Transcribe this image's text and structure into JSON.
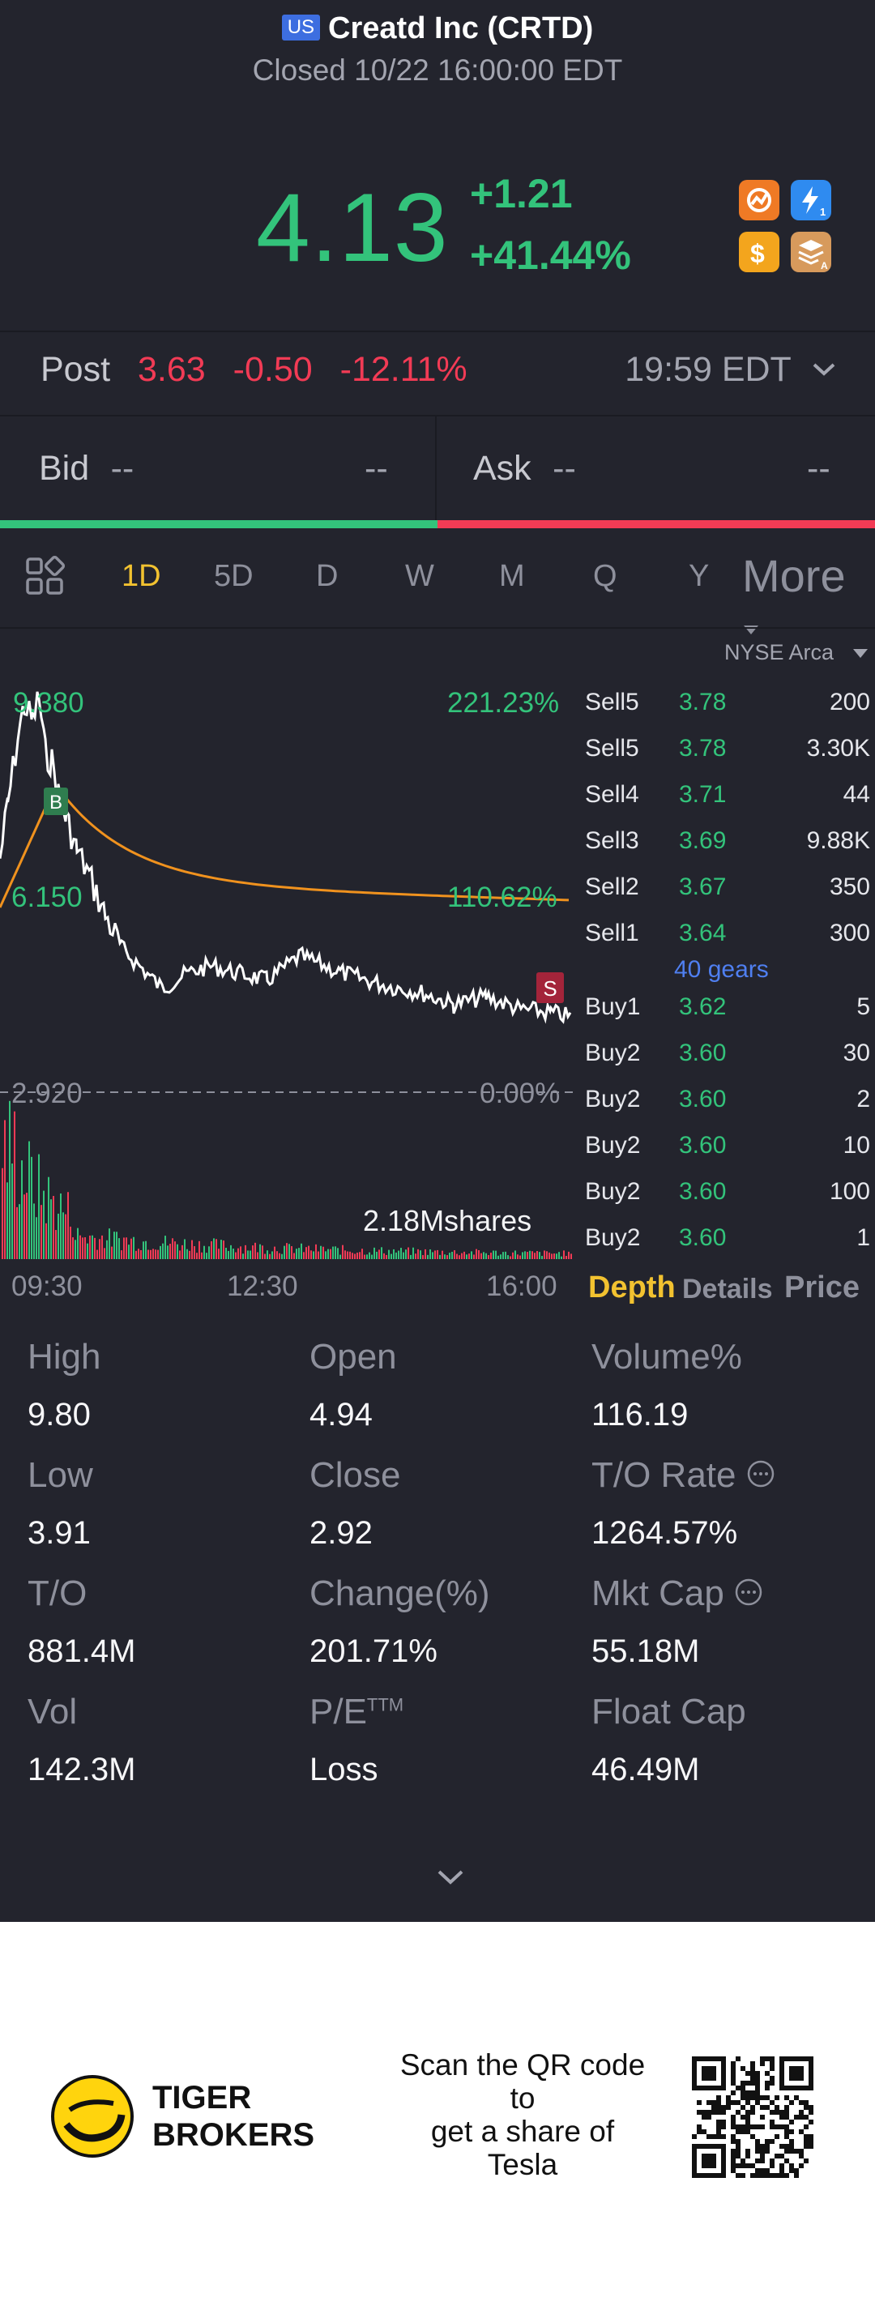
{
  "header": {
    "market_badge": "US",
    "title": "Creatd Inc (CRTD)",
    "status": "Closed 10/22 16:00:00 EDT"
  },
  "quote": {
    "price": "4.13",
    "change": "+1.21",
    "change_pct": "+41.44%"
  },
  "post": {
    "label": "Post",
    "price": "3.63",
    "change": "-0.50",
    "change_pct": "-12.11%",
    "time": "19:59 EDT"
  },
  "bid": {
    "label": "Bid",
    "price": "--",
    "size": "--"
  },
  "ask": {
    "label": "Ask",
    "price": "--",
    "size": "--"
  },
  "periods": [
    "1D",
    "5D",
    "D",
    "W",
    "M",
    "Q",
    "Y"
  ],
  "more_label": "More",
  "exchange": "NYSE Arca",
  "chart": {
    "y_top": "9.380",
    "y_mid": "6.150",
    "y_base": "2.920",
    "pct_top": "221.23%",
    "pct_mid": "110.62%",
    "pct_base": "0.00%",
    "buy_marker": "B",
    "sell_marker": "S",
    "volume_label": "2.18Mshares",
    "x_ticks": [
      "09:30",
      "12:30",
      "16:00"
    ],
    "colors": {
      "price_line": "#ffffff",
      "avg_line": "#f0921e",
      "vol_up": "#33c37b",
      "vol_down": "#f23b55"
    }
  },
  "order_book": {
    "sells": [
      {
        "label": "Sell5",
        "price": "3.78",
        "qty": "200"
      },
      {
        "label": "Sell5",
        "price": "3.78",
        "qty": "3.30K"
      },
      {
        "label": "Sell4",
        "price": "3.71",
        "qty": "44"
      },
      {
        "label": "Sell3",
        "price": "3.69",
        "qty": "9.88K"
      },
      {
        "label": "Sell2",
        "price": "3.67",
        "qty": "350"
      },
      {
        "label": "Sell1",
        "price": "3.64",
        "qty": "300"
      }
    ],
    "gears": "40 gears",
    "buys": [
      {
        "label": "Buy1",
        "price": "3.62",
        "qty": "5"
      },
      {
        "label": "Buy2",
        "price": "3.60",
        "qty": "30"
      },
      {
        "label": "Buy2",
        "price": "3.60",
        "qty": "2"
      },
      {
        "label": "Buy2",
        "price": "3.60",
        "qty": "10"
      },
      {
        "label": "Buy2",
        "price": "3.60",
        "qty": "100"
      },
      {
        "label": "Buy2",
        "price": "3.60",
        "qty": "1"
      }
    ],
    "tabs": [
      "Depth",
      "Details",
      "Price"
    ]
  },
  "stats": {
    "high": {
      "label": "High",
      "value": "9.80"
    },
    "open": {
      "label": "Open",
      "value": "4.94"
    },
    "volume_pct": {
      "label": "Volume%",
      "value": "116.19"
    },
    "low": {
      "label": "Low",
      "value": "3.91"
    },
    "close": {
      "label": "Close",
      "value": "2.92"
    },
    "turnover_rate": {
      "label": "T/O Rate",
      "value": "1264.57%"
    },
    "turnover": {
      "label": "T/O",
      "value": "881.4M"
    },
    "change_pct": {
      "label": "Change(%)",
      "value": "201.71%"
    },
    "mkt_cap": {
      "label": "Mkt Cap",
      "value": "55.18M"
    },
    "vol": {
      "label": "Vol",
      "value": "142.3M"
    },
    "pe": {
      "label": "P/E",
      "sup": "TTM",
      "value": "Loss"
    },
    "float_cap": {
      "label": "Float Cap",
      "value": "46.49M"
    }
  },
  "footer": {
    "brand_line1": "TIGER",
    "brand_line2": "BROKERS",
    "promo": [
      "Scan the QR code",
      "to",
      "get a share of",
      "Tesla"
    ]
  },
  "icons": [
    "market-icon",
    "lightning-icon",
    "dollar-icon",
    "layers-icon",
    "grid-icon",
    "dropdown-icon",
    "expand-icon",
    "info-icon",
    "tiger-logo",
    "qr-code"
  ]
}
